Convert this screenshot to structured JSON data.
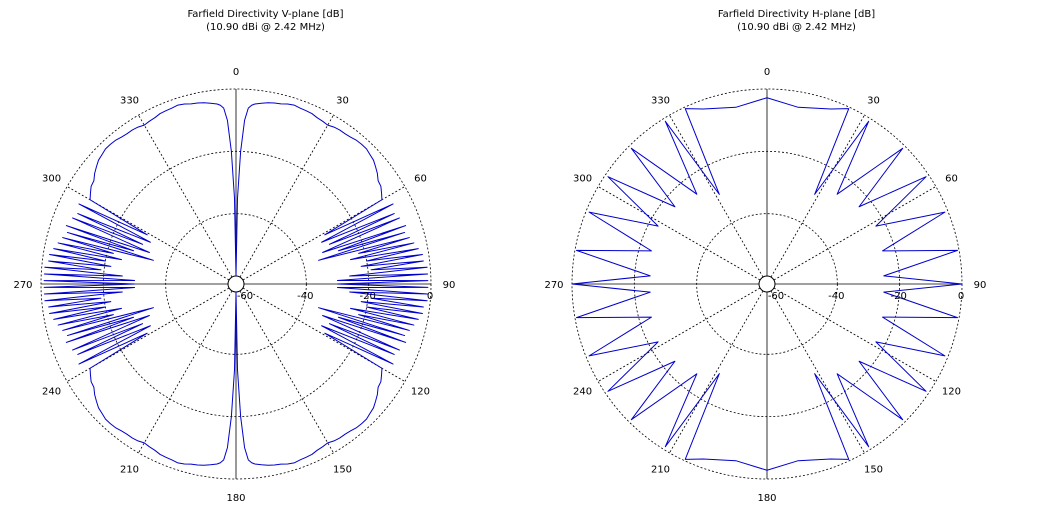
{
  "chart_data": [
    {
      "type": "polar-line",
      "title": "Farfield Directivity V-plane [dB]",
      "subtitle": "(10.90 dBi @ 2.42 MHz)",
      "radial_ticks": [
        "-60",
        "-40",
        "-20",
        "0"
      ],
      "radial_range": [
        -60,
        0
      ],
      "angle_ticks": [
        "0",
        "30",
        "60",
        "90",
        "120",
        "150",
        "180",
        "210",
        "240",
        "270",
        "300",
        "330"
      ],
      "zero_direction": "top",
      "direction": "clockwise",
      "grid": true,
      "color": "#0000cc",
      "series": [
        {
          "angles_deg": [
            0,
            1,
            2,
            3,
            4,
            5,
            6,
            8,
            10,
            12,
            14,
            16,
            18,
            20,
            22,
            24,
            26,
            28,
            30,
            32,
            34,
            36,
            38,
            40,
            42,
            44,
            46,
            48,
            50,
            52,
            54,
            56,
            58,
            60,
            61,
            63,
            64,
            66,
            67,
            68,
            70,
            71,
            72,
            73,
            74,
            75,
            76,
            77,
            78,
            79,
            80,
            81,
            82,
            83,
            84,
            85,
            86,
            87,
            88,
            89,
            90
          ],
          "values_db": [
            -60,
            -35,
            -20,
            -10,
            -6,
            -5,
            -4.5,
            -4,
            -3.5,
            -3.2,
            -3,
            -2.5,
            -2.2,
            -2.5,
            -2.6,
            -2.7,
            -3.2,
            -3.4,
            -3.7,
            -3.2,
            -3,
            -3,
            -2.8,
            -2.4,
            -2.3,
            -2.3,
            -2.8,
            -3.2,
            -4.1,
            -5,
            -6.2,
            -6.5,
            -7.5,
            -8.5,
            -30,
            -6,
            -32,
            -7,
            -30,
            -6,
            -33,
            -5,
            -28,
            -6,
            -35,
            -5,
            -22,
            -4,
            -25,
            -3,
            -20,
            -2,
            -22,
            -2,
            -19,
            -1,
            -26,
            -1,
            -30,
            -1,
            -30
          ]
        }
      ]
    },
    {
      "type": "polar-line",
      "title": "Farfield Directivity H-plane [dB]",
      "subtitle": "(10.90 dBi @ 2.42 MHz)",
      "radial_ticks": [
        "-60",
        "-40",
        "-20",
        "0"
      ],
      "radial_range": [
        -60,
        0
      ],
      "angle_ticks": [
        "0",
        "30",
        "60",
        "90",
        "120",
        "150",
        "180",
        "210",
        "240",
        "270",
        "300",
        "330"
      ],
      "zero_direction": "top",
      "direction": "clockwise",
      "grid": true,
      "color": "#0000cc",
      "series": [
        {
          "angles_deg": [
            0,
            10,
            20,
            25,
            28,
            32,
            38,
            45,
            50,
            56,
            62,
            68,
            74,
            80,
            86,
            90
          ],
          "values_db": [
            -2.8,
            -5,
            -2.8,
            -0.5,
            -30,
            -1,
            -26,
            -1,
            -24,
            -1,
            -23,
            -1,
            -24,
            -0.5,
            -25,
            0
          ]
        }
      ]
    }
  ]
}
